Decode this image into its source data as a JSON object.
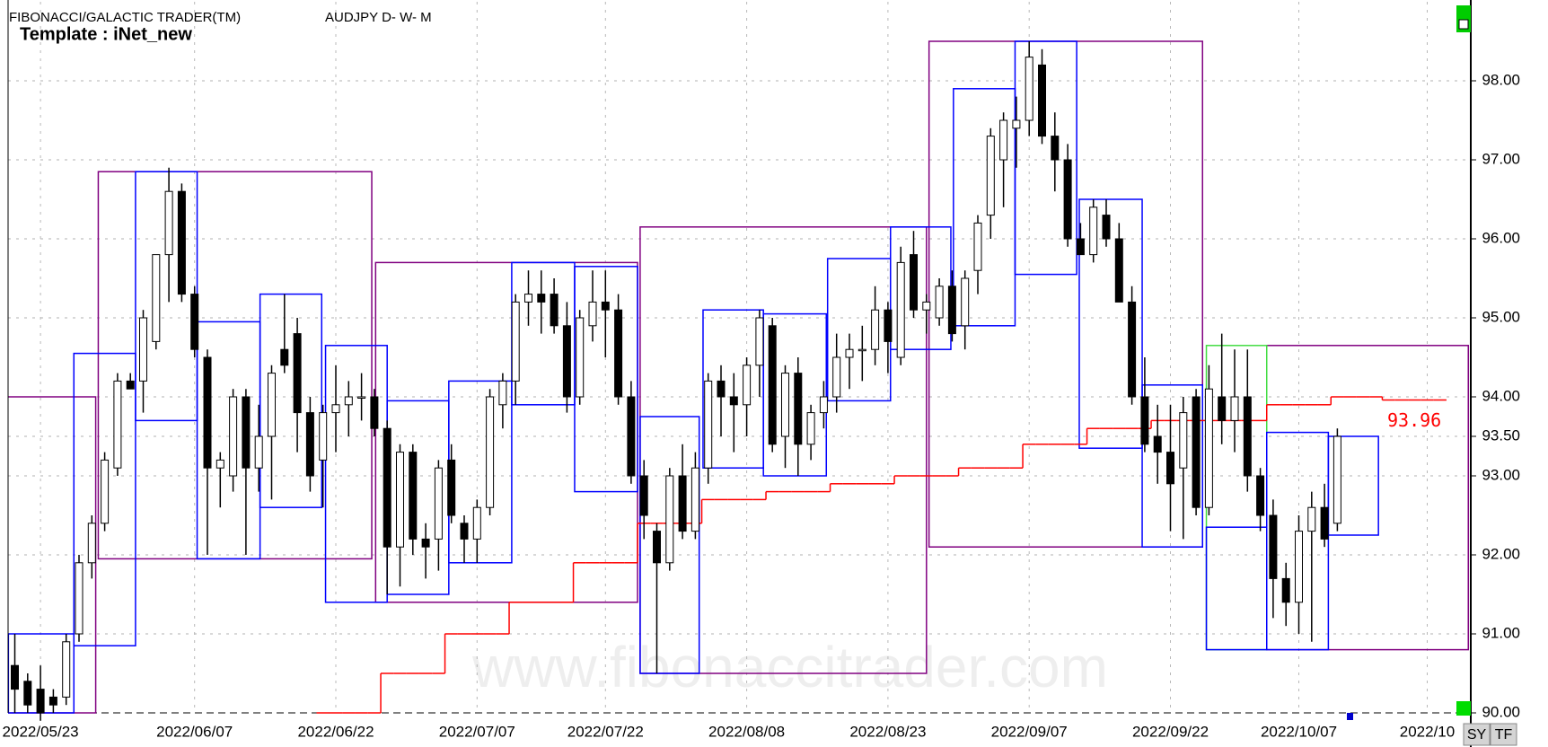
{
  "header": {
    "app_title": "FIBONACCI/GALACTIC TRADER(TM)",
    "symbol": "AUDJPY D- W- M",
    "template": "Template : iNet_new",
    "watermark": "www.fibonaccitrader.com",
    "buttons": [
      "SY",
      "TF"
    ]
  },
  "chart_data": {
    "type": "candlestick",
    "categories": [
      null,
      null,
      "2022/05/23",
      null,
      null,
      null,
      null,
      null,
      null,
      null,
      null,
      null,
      null,
      null,
      "2022/06/07",
      null,
      null,
      null,
      null,
      null,
      null,
      null,
      null,
      null,
      null,
      "2022/06/22",
      null,
      null,
      null,
      null,
      null,
      null,
      null,
      null,
      null,
      null,
      "2022/07/07",
      null,
      null,
      null,
      null,
      null,
      null,
      null,
      null,
      null,
      "2022/07/22",
      null,
      null,
      null,
      null,
      null,
      null,
      null,
      null,
      null,
      null,
      "2022/08/08",
      null,
      null,
      null,
      null,
      null,
      null,
      null,
      null,
      null,
      null,
      "2022/08/23",
      null,
      null,
      null,
      null,
      null,
      null,
      null,
      null,
      null,
      null,
      "2022/09/07",
      null,
      null,
      null,
      null,
      null,
      null,
      null,
      null,
      null,
      null,
      "2022/09/22",
      null,
      null,
      null,
      null,
      null,
      null,
      null,
      null,
      null,
      "2022/10/07",
      null,
      null,
      null,
      null,
      null,
      null,
      null,
      null,
      null,
      "2022/10",
      null
    ],
    "open": [
      90.6,
      90.4,
      90.3,
      90.2,
      90.2,
      91.0,
      91.9,
      92.4,
      93.1,
      94.2,
      94.2,
      94.7,
      95.8,
      96.6,
      95.3,
      94.5,
      93.1,
      93.0,
      94.0,
      93.1,
      93.5,
      94.6,
      94.8,
      93.8,
      93.2,
      93.8,
      93.9,
      94.0,
      94.0,
      93.6,
      92.1,
      93.3,
      92.2,
      92.2,
      93.2,
      92.4,
      92.2,
      92.6,
      93.9,
      94.2,
      95.2,
      95.3,
      95.3,
      94.9,
      94.0,
      94.9,
      95.2,
      95.1,
      94.0,
      93.0,
      92.3,
      91.9,
      93.0,
      92.3,
      93.1,
      94.2,
      94.0,
      93.9,
      94.4,
      94.9,
      93.5,
      94.3,
      93.4,
      93.8,
      94.0,
      94.5,
      94.6,
      94.6,
      95.1,
      94.5,
      95.8,
      95.1,
      95.0,
      95.4,
      94.9,
      95.6,
      96.3,
      97.0,
      97.4,
      97.5,
      98.2,
      97.3,
      97.0,
      96.0,
      95.8,
      96.3,
      96.0,
      95.2,
      94.0,
      93.5,
      93.3,
      93.1,
      94.0,
      92.6,
      94.0,
      93.7,
      94.0,
      93.0,
      92.5,
      91.7,
      91.4,
      92.3,
      92.6,
      92.4,
      null,
      null,
      null,
      null,
      null,
      null,
      null,
      null
    ],
    "high": [
      91.0,
      90.5,
      90.6,
      90.3,
      91.0,
      92.0,
      92.5,
      93.3,
      94.3,
      94.3,
      95.1,
      95.8,
      96.9,
      96.7,
      95.4,
      94.6,
      93.3,
      94.1,
      94.1,
      93.9,
      94.4,
      95.3,
      95.0,
      94.0,
      93.9,
      94.4,
      94.2,
      94.3,
      94.1,
      93.7,
      93.4,
      93.4,
      92.4,
      93.2,
      93.4,
      92.5,
      92.7,
      94.1,
      94.3,
      95.3,
      95.6,
      95.6,
      95.5,
      95.2,
      95.1,
      95.6,
      95.6,
      95.3,
      94.2,
      93.2,
      92.4,
      93.1,
      93.4,
      93.3,
      94.3,
      94.4,
      94.3,
      94.5,
      95.1,
      95.0,
      94.4,
      94.5,
      93.9,
      94.2,
      94.8,
      94.8,
      94.9,
      95.4,
      95.2,
      95.9,
      96.1,
      95.3,
      95.5,
      95.6,
      95.6,
      96.3,
      97.4,
      97.6,
      97.8,
      98.5,
      98.4,
      97.6,
      97.2,
      96.2,
      96.5,
      96.5,
      96.2,
      95.4,
      94.5,
      93.9,
      93.9,
      94.0,
      94.1,
      94.4,
      94.8,
      94.6,
      94.6,
      93.1,
      92.7,
      91.9,
      92.5,
      92.8,
      92.9,
      93.6,
      null,
      null,
      null,
      null,
      null,
      null,
      null,
      null
    ],
    "low": [
      90.0,
      90.0,
      89.9,
      90.0,
      90.1,
      90.9,
      91.7,
      92.3,
      93.0,
      94.1,
      93.8,
      94.6,
      95.2,
      95.2,
      94.5,
      92.0,
      92.6,
      92.8,
      92.0,
      92.8,
      92.7,
      94.3,
      93.3,
      92.8,
      92.6,
      93.3,
      93.5,
      93.7,
      93.5,
      91.5,
      91.6,
      92.0,
      91.7,
      91.8,
      92.4,
      91.9,
      91.9,
      92.5,
      93.6,
      93.9,
      94.9,
      94.8,
      94.8,
      93.8,
      93.9,
      94.7,
      94.5,
      93.9,
      92.9,
      92.2,
      90.5,
      91.8,
      92.2,
      92.2,
      92.9,
      93.5,
      93.3,
      93.5,
      94.0,
      93.3,
      93.1,
      93.0,
      93.2,
      93.6,
      93.8,
      94.1,
      94.2,
      94.4,
      94.3,
      94.4,
      95.0,
      94.8,
      94.9,
      94.7,
      94.6,
      95.3,
      96.0,
      96.4,
      96.9,
      97.3,
      97.2,
      96.6,
      95.9,
      95.8,
      95.7,
      95.9,
      95.2,
      93.9,
      93.3,
      92.9,
      92.3,
      92.2,
      92.5,
      92.5,
      93.4,
      93.3,
      92.8,
      92.3,
      91.2,
      91.1,
      91.0,
      90.9,
      92.1,
      92.3,
      null,
      null,
      null,
      null,
      null,
      null,
      null,
      null
    ],
    "close": [
      90.3,
      90.1,
      90.0,
      90.1,
      90.9,
      91.9,
      92.4,
      93.2,
      94.2,
      94.1,
      95.0,
      95.8,
      96.6,
      95.3,
      94.6,
      93.1,
      93.2,
      94.0,
      93.1,
      93.5,
      94.3,
      94.4,
      93.8,
      93.0,
      93.8,
      93.9,
      94.0,
      94.0,
      93.6,
      92.1,
      93.3,
      92.2,
      92.1,
      93.1,
      92.5,
      92.2,
      92.6,
      94.0,
      94.2,
      95.2,
      95.3,
      95.2,
      94.9,
      94.0,
      95.0,
      95.2,
      95.1,
      94.0,
      93.0,
      92.5,
      91.9,
      93.0,
      92.3,
      93.1,
      94.2,
      94.0,
      93.9,
      94.4,
      95.0,
      93.4,
      94.3,
      93.4,
      93.8,
      94.0,
      94.5,
      94.6,
      94.6,
      95.1,
      94.7,
      95.7,
      95.1,
      95.2,
      95.4,
      94.8,
      95.5,
      96.2,
      97.3,
      97.5,
      97.5,
      98.3,
      97.3,
      97.0,
      96.0,
      95.8,
      96.4,
      96.0,
      95.2,
      94.0,
      93.4,
      93.3,
      92.9,
      93.8,
      92.6,
      94.1,
      93.7,
      94.0,
      93.0,
      92.5,
      91.7,
      91.4,
      92.3,
      92.6,
      92.2,
      93.5,
      null,
      null,
      null,
      null,
      null,
      null,
      null,
      null
    ],
    "line": {
      "color": "#ff0000",
      "values": [
        null,
        null,
        null,
        null,
        null,
        null,
        null,
        null,
        null,
        null,
        null,
        null,
        null,
        null,
        null,
        null,
        null,
        null,
        null,
        null,
        null,
        null,
        null,
        null,
        90,
        90,
        90,
        90,
        90,
        90.5,
        90.5,
        90.5,
        90.5,
        90.5,
        91,
        91,
        91,
        91,
        91,
        91.4,
        91.4,
        91.4,
        91.4,
        91.4,
        91.9,
        91.9,
        91.9,
        91.9,
        91.9,
        92.4,
        92.4,
        92.4,
        92.4,
        92.4,
        92.7,
        92.7,
        92.7,
        92.7,
        92.7,
        92.8,
        92.8,
        92.8,
        92.8,
        92.8,
        92.9,
        92.9,
        92.9,
        92.9,
        92.9,
        93,
        93,
        93,
        93,
        93,
        93.1,
        93.1,
        93.1,
        93.1,
        93.1,
        93.4,
        93.4,
        93.4,
        93.4,
        93.4,
        93.6,
        93.6,
        93.6,
        93.6,
        93.6,
        93.7,
        93.7,
        93.7,
        93.7,
        93.7,
        93.7,
        93.7,
        93.7,
        93.7,
        93.9,
        93.9,
        93.9,
        93.9,
        93.9,
        94,
        94,
        94,
        94,
        93.96,
        93.96,
        93.96,
        93.96,
        93.96
      ]
    },
    "boxes": [
      {
        "start": -1.2,
        "end": 6.3,
        "low": 90.0,
        "high": 94.0,
        "color": "#800080"
      },
      {
        "start": 6.5,
        "end": 27.8,
        "low": 91.95,
        "high": 96.85,
        "color": "#800080"
      },
      {
        "start": 28.1,
        "end": 48.5,
        "low": 91.4,
        "high": 95.7,
        "color": "#800080"
      },
      {
        "start": 48.7,
        "end": 71.0,
        "low": 90.5,
        "high": 96.15,
        "color": "#800080"
      },
      {
        "start": 71.2,
        "end": 92.5,
        "low": 92.1,
        "high": 98.5,
        "color": "#800080"
      },
      {
        "start": 97.5,
        "end": 113.2,
        "low": 90.8,
        "high": 94.65,
        "color": "#800080"
      },
      {
        "start": 92.8,
        "end": 97.5,
        "low": 90.8,
        "high": 94.65,
        "color": "#44dd44"
      },
      {
        "start": -0.5,
        "end": 4.6,
        "low": 90.0,
        "high": 91.0,
        "color": "#0000ff"
      },
      {
        "start": 4.6,
        "end": 9.4,
        "low": 90.85,
        "high": 94.55,
        "color": "#0000ff"
      },
      {
        "start": 9.4,
        "end": 14.2,
        "low": 93.7,
        "high": 96.85,
        "color": "#0000ff"
      },
      {
        "start": 14.2,
        "end": 19.1,
        "low": 91.95,
        "high": 94.95,
        "color": "#0000ff"
      },
      {
        "start": 19.1,
        "end": 23.9,
        "low": 92.6,
        "high": 95.3,
        "color": "#0000ff"
      },
      {
        "start": 24.2,
        "end": 29.0,
        "low": 91.4,
        "high": 94.65,
        "color": "#0000ff"
      },
      {
        "start": 29.0,
        "end": 33.8,
        "low": 91.5,
        "high": 93.95,
        "color": "#0000ff"
      },
      {
        "start": 33.8,
        "end": 38.7,
        "low": 91.9,
        "high": 94.2,
        "color": "#0000ff"
      },
      {
        "start": 38.7,
        "end": 43.6,
        "low": 93.9,
        "high": 95.7,
        "color": "#0000ff"
      },
      {
        "start": 43.6,
        "end": 48.5,
        "low": 92.8,
        "high": 95.65,
        "color": "#0000ff"
      },
      {
        "start": 48.7,
        "end": 53.3,
        "low": 90.5,
        "high": 93.75,
        "color": "#0000ff"
      },
      {
        "start": 53.6,
        "end": 58.3,
        "low": 93.1,
        "high": 95.1,
        "color": "#0000ff"
      },
      {
        "start": 58.3,
        "end": 63.2,
        "low": 93.0,
        "high": 95.05,
        "color": "#0000ff"
      },
      {
        "start": 63.3,
        "end": 68.2,
        "low": 93.95,
        "high": 95.75,
        "color": "#0000ff"
      },
      {
        "start": 68.2,
        "end": 72.9,
        "low": 94.6,
        "high": 96.15,
        "color": "#0000ff"
      },
      {
        "start": 73.1,
        "end": 77.9,
        "low": 94.9,
        "high": 97.9,
        "color": "#0000ff"
      },
      {
        "start": 77.9,
        "end": 82.7,
        "low": 95.55,
        "high": 98.5,
        "color": "#0000ff"
      },
      {
        "start": 82.9,
        "end": 87.8,
        "low": 93.35,
        "high": 96.5,
        "color": "#0000ff"
      },
      {
        "start": 87.8,
        "end": 92.5,
        "low": 92.1,
        "high": 94.15,
        "color": "#0000ff"
      },
      {
        "start": 92.8,
        "end": 97.5,
        "low": 90.8,
        "high": 92.35,
        "color": "#0000ff"
      },
      {
        "start": 97.5,
        "end": 102.3,
        "low": 90.8,
        "high": 93.55,
        "color": "#0000ff"
      },
      {
        "start": 102.3,
        "end": 106.2,
        "low": 92.25,
        "high": 93.5,
        "color": "#0000ff"
      }
    ],
    "ylim": [
      90,
      99
    ],
    "yticks": [
      {
        "value": 90,
        "label": "90.00"
      },
      {
        "value": 91,
        "label": "91.00"
      },
      {
        "value": 92,
        "label": "92.00"
      },
      {
        "value": 93,
        "label": "93.00"
      },
      {
        "value": 93.5,
        "label": "93.50"
      },
      {
        "value": 94,
        "label": "94.00"
      },
      {
        "value": 95,
        "label": "95.00"
      },
      {
        "value": 96,
        "label": "96.00"
      },
      {
        "value": 97,
        "label": "97.00"
      },
      {
        "value": 98,
        "label": "98.00"
      }
    ],
    "grid": true
  }
}
